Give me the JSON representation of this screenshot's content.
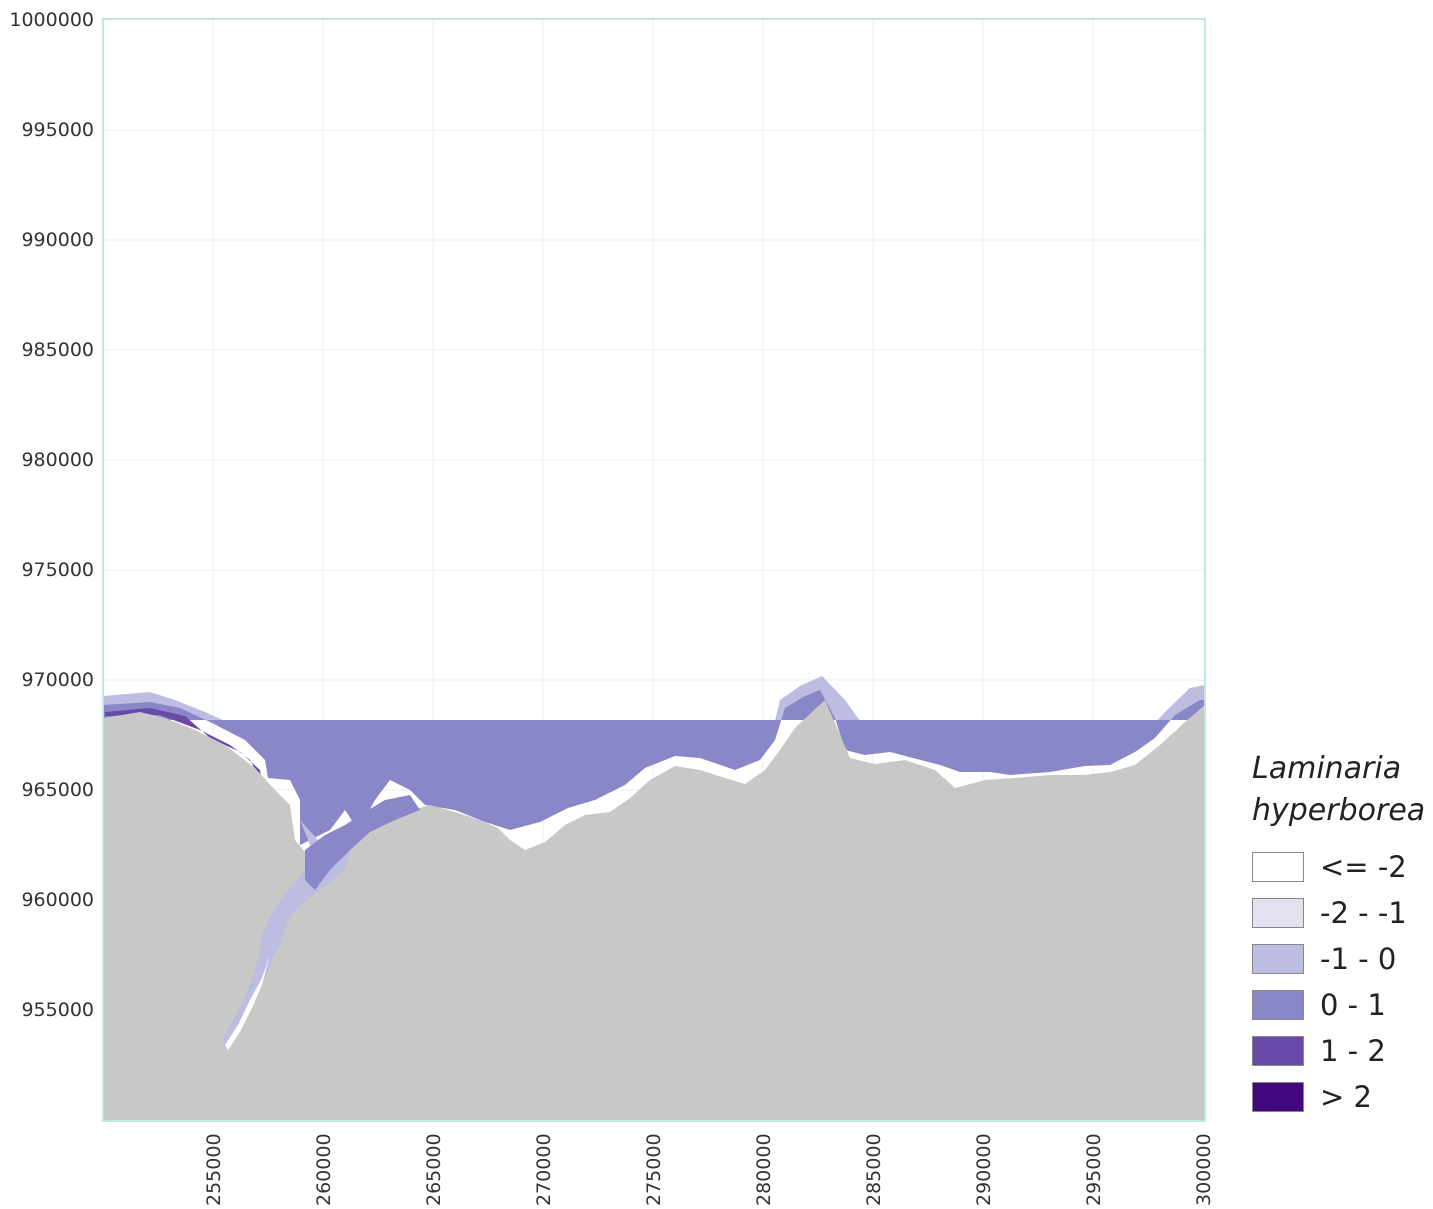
{
  "map": {
    "y_ticks": [
      "1000000",
      "995000",
      "990000",
      "985000",
      "980000",
      "975000",
      "970000",
      "965000",
      "960000",
      "955000"
    ],
    "x_ticks": [
      "255000",
      "260000",
      "265000",
      "270000",
      "275000",
      "280000",
      "285000",
      "290000",
      "295000",
      "300000"
    ],
    "colors": {
      "land": "#c8c8c6",
      "sea": "#ffffff",
      "frame": "#bfe9e0",
      "grid": "#e6f2ef"
    }
  },
  "legend": {
    "title_line1": "Laminaria",
    "title_line2": "hyperborea",
    "items": [
      {
        "label": "<= -2",
        "color": "#ffffff"
      },
      {
        "label": "-2 - -1",
        "color": "#e3e2f0"
      },
      {
        "label": "-1 - 0",
        "color": "#bcbde0"
      },
      {
        "label": "0 - 1",
        "color": "#8a87c8"
      },
      {
        "label": "1 - 2",
        "color": "#6a4aa8"
      },
      {
        "label": "> 2",
        "color": "#43077d"
      }
    ]
  }
}
